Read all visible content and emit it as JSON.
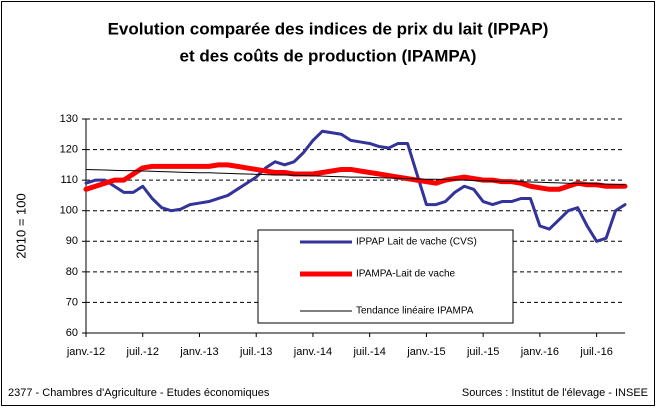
{
  "chart_data": {
    "type": "line",
    "title": [
      "Evolution comparée des indices de prix du lait (IPPAP)",
      "et des coûts de production (IPAMPA)"
    ],
    "y_label": "2010 = 100",
    "note": "2377 - Chambres d'Agriculture - Etudes économiques",
    "source": "Sources : Institut de l'élevage - INSEE",
    "categories": [
      "janv.-12",
      null,
      null,
      null,
      null,
      null,
      "juil.-12",
      null,
      null,
      null,
      null,
      null,
      "janv.-13",
      null,
      null,
      null,
      null,
      null,
      "juil.-13",
      null,
      null,
      null,
      null,
      null,
      "janv.-14",
      null,
      null,
      null,
      null,
      null,
      "juil.-14",
      null,
      null,
      null,
      null,
      null,
      "janv.-15",
      null,
      null,
      null,
      null,
      null,
      "juil.-15",
      null,
      null,
      null,
      null,
      null,
      "janv.-16",
      null,
      null,
      null,
      null,
      null,
      "juil.-16",
      null,
      null,
      null
    ],
    "series": [
      {
        "name": "IPPAP Lait de vache (CVS)",
        "color": "#333399",
        "width": 3,
        "values": [
          109,
          110,
          110,
          108,
          106,
          106,
          108,
          104,
          101,
          100,
          100.5,
          102,
          102.5,
          103,
          104,
          105,
          107,
          109,
          111,
          114,
          116,
          115,
          116,
          119,
          123,
          126,
          125.5,
          125,
          123,
          122.5,
          122,
          121,
          120.5,
          122,
          122,
          112,
          102,
          102,
          103,
          106,
          108,
          107,
          103,
          102,
          103,
          103,
          104,
          104,
          95,
          94,
          97,
          100,
          101,
          95,
          90,
          91,
          100,
          102
        ]
      },
      {
        "name": "IPAMPA-Lait de vache",
        "color": "#ff0000",
        "width": 5,
        "values": [
          107,
          108,
          109,
          110,
          110,
          112,
          114,
          114.5,
          114.5,
          114.5,
          114.5,
          114.5,
          114.5,
          114.5,
          115,
          115,
          114.5,
          114,
          113.5,
          113,
          112.5,
          112.5,
          112,
          112,
          112,
          112.5,
          113,
          113.5,
          113.5,
          113,
          112.5,
          112,
          111.5,
          111,
          110.5,
          110,
          109.5,
          109,
          110,
          110.5,
          111,
          110.5,
          110,
          110,
          109.5,
          109.5,
          109,
          108,
          107.5,
          107,
          107,
          108,
          109,
          108.5,
          108.5,
          108,
          108,
          108
        ]
      },
      {
        "name": "Tendance linéaire IPAMPA",
        "color": "#000000",
        "width": 1,
        "values": [
          113.5,
          113.4,
          113.3,
          113.2,
          113.1,
          113.1,
          113.0,
          112.9,
          112.8,
          112.7,
          112.6,
          112.5,
          112.4,
          112.4,
          112.3,
          112.2,
          112.1,
          112.0,
          111.9,
          111.8,
          111.7,
          111.7,
          111.6,
          111.5,
          111.4,
          111.3,
          111.2,
          111.1,
          111.0,
          111.0,
          110.9,
          110.8,
          110.7,
          110.6,
          110.5,
          110.4,
          110.3,
          110.3,
          110.2,
          110.1,
          110.0,
          109.9,
          109.8,
          109.7,
          109.6,
          109.6,
          109.5,
          109.4,
          109.3,
          109.2,
          109.1,
          109.0,
          108.9,
          108.9,
          108.8,
          108.7,
          108.6,
          108.5
        ]
      }
    ],
    "ylim": [
      60,
      130
    ],
    "yticks": [
      60,
      70,
      80,
      90,
      100,
      110,
      120,
      130
    ],
    "grid": true,
    "legend": "lower center"
  }
}
